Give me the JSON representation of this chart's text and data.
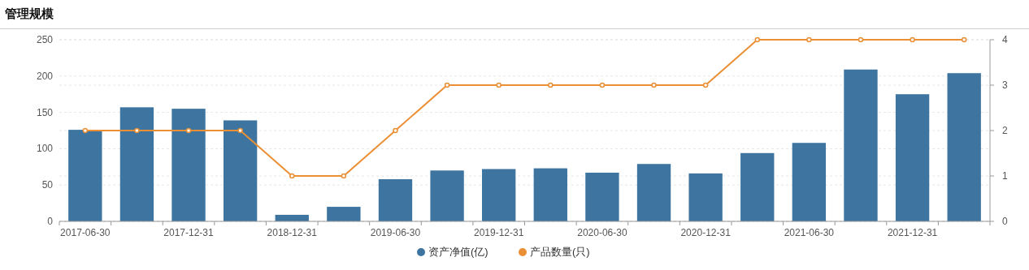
{
  "chart_data": {
    "type": "bar",
    "title": "管理规模",
    "categories": [
      "2017-06-30",
      null,
      "2017-12-31",
      null,
      "2018-12-31",
      null,
      "2019-06-30",
      null,
      "2019-12-31",
      null,
      "2020-06-30",
      null,
      "2020-12-31",
      null,
      "2021-06-30",
      null,
      "2021-12-31",
      null
    ],
    "series": [
      {
        "name": "资产净值(亿)",
        "color": "#3d75a0",
        "values": [
          126,
          157,
          155,
          139,
          9,
          20,
          58,
          70,
          72,
          73,
          67,
          79,
          66,
          94,
          108,
          209,
          175,
          204
        ]
      },
      {
        "name": "产品数量(只)",
        "color": "#eb8f35",
        "type": "line",
        "axis": "y2",
        "values": [
          2,
          2,
          2,
          2,
          1,
          1,
          2,
          3,
          3,
          3,
          3,
          3,
          3,
          4,
          4,
          4,
          4,
          4
        ]
      }
    ],
    "ylim": [
      0,
      250
    ],
    "yticks": [
      0,
      50,
      100,
      150,
      200,
      250
    ],
    "y2lim": [
      0,
      4
    ],
    "y2ticks": [
      0,
      1,
      2,
      3,
      4
    ],
    "grid": "y",
    "legend": "bottom",
    "marker": "circle"
  }
}
